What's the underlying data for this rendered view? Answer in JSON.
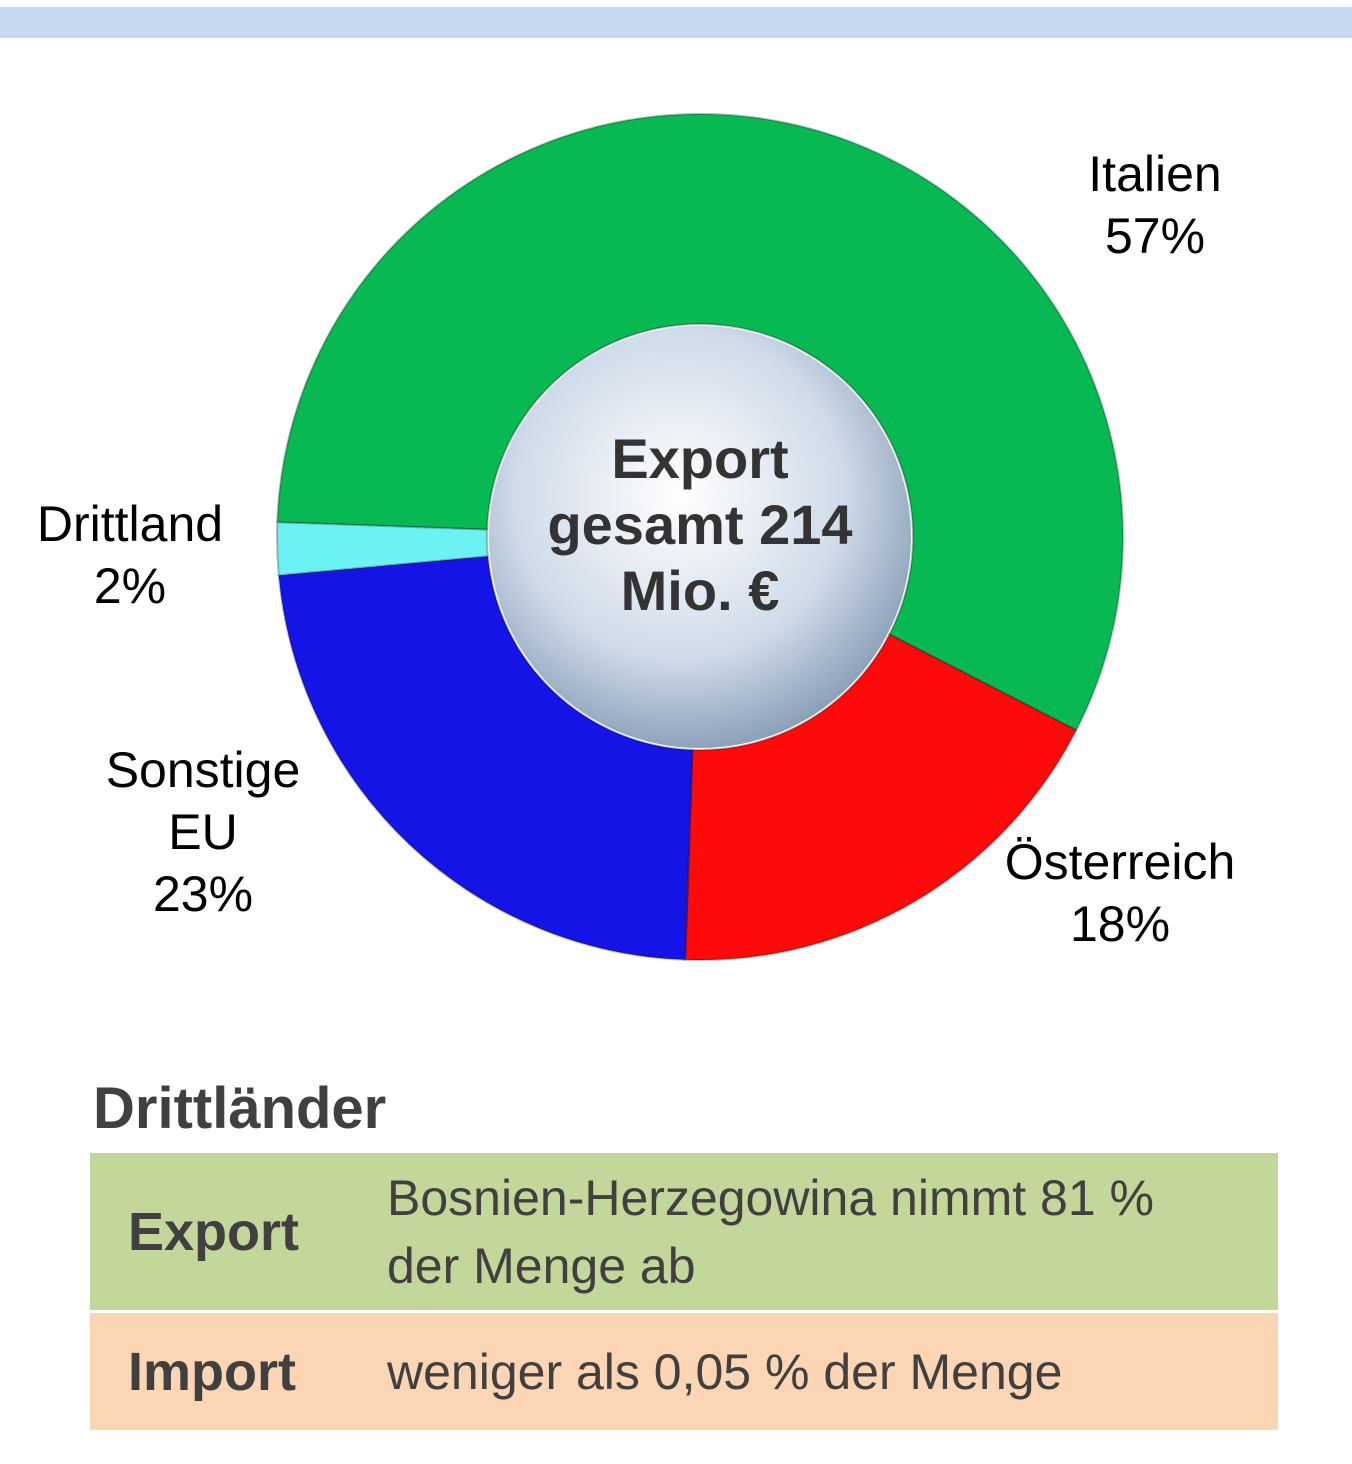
{
  "chart_data": {
    "type": "donut",
    "center_label": "Export gesamt 214 Mio. €",
    "categories": [
      "Italien",
      "Österreich",
      "Sonstige EU",
      "Drittland"
    ],
    "values": [
      57,
      18,
      23,
      2
    ],
    "value_labels": [
      "57%",
      "18%",
      "23%",
      "2%"
    ],
    "colors": [
      "#07b853",
      "#ff0a0a",
      "#1414e6",
      "#6cf2f2"
    ]
  },
  "table": {
    "title": "Drittländer",
    "rows": [
      [
        "Export",
        "Bosnien-Herzegowina nimmt 81 % der Menge ab"
      ],
      [
        "Import",
        "weniger als 0,05 % der Menge"
      ]
    ]
  }
}
